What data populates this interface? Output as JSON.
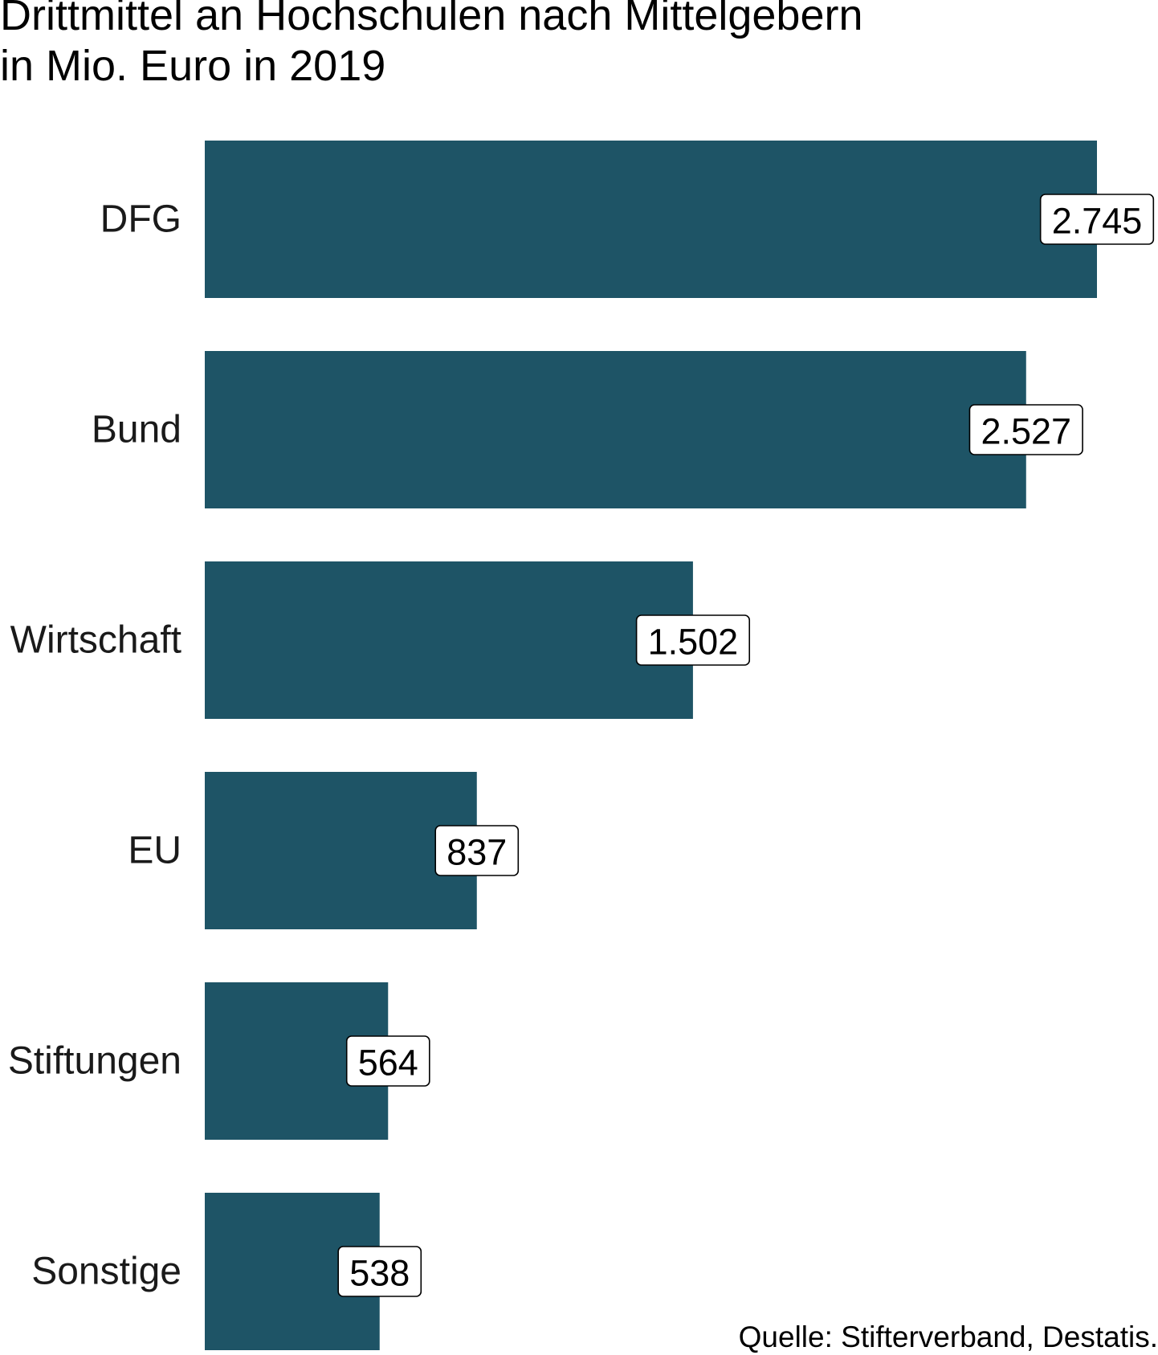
{
  "chart_data": {
    "type": "bar",
    "orientation": "horizontal",
    "title": "Drittmittel an Hochschulen nach Mittelgebern\nin Mio. Euro in 2019",
    "categories": [
      "DFG",
      "Bund",
      "Wirtschaft",
      "EU",
      "Stiftungen",
      "Sonstige"
    ],
    "values": [
      2745,
      2527,
      1502,
      837,
      564,
      538
    ],
    "value_labels": [
      "2.745",
      "2.527",
      "1.502",
      "837",
      "564",
      "538"
    ],
    "xlim": [
      0,
      2745
    ],
    "grid": false,
    "legend": "none",
    "source": "Quelle: Stifterverband, Destatis.",
    "bar_color": "#1e5466"
  }
}
